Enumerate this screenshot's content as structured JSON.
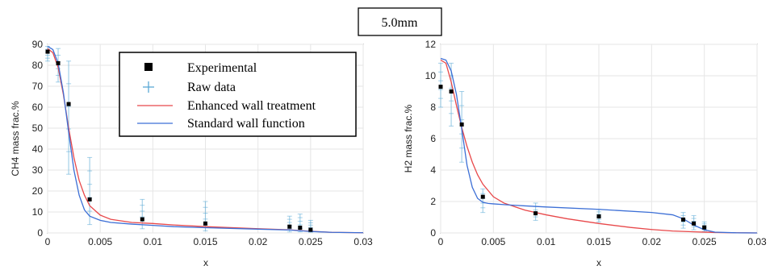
{
  "header": {
    "label": "5.0mm"
  },
  "legend": {
    "items": [
      {
        "label": "Experimental",
        "marker": "square",
        "color": "#000000"
      },
      {
        "label": "Raw data",
        "marker": "plus",
        "color": "#5aa9d6"
      },
      {
        "label": "Enhanced wall treatment",
        "marker": "line",
        "color": "#e8484a"
      },
      {
        "label": "Standard wall function",
        "marker": "line",
        "color": "#3c6fd6"
      }
    ]
  },
  "chart_data": [
    {
      "type": "scatter",
      "xlabel": "x",
      "ylabel": "CH4 mass frac.%",
      "xlim": [
        0,
        0.03
      ],
      "ylim": [
        0,
        90
      ],
      "xticks": [
        0,
        0.005,
        0.01,
        0.015,
        0.02,
        0.025,
        0.03
      ],
      "xtick_labels": [
        "0",
        "0.005",
        "0.01",
        "0.015",
        "0.02",
        "0.025",
        "0.03"
      ],
      "yticks": [
        0,
        10,
        20,
        30,
        40,
        50,
        60,
        70,
        80,
        90
      ],
      "ytick_labels": [
        "0",
        "10",
        "20",
        "30",
        "40",
        "50",
        "60",
        "70",
        "80",
        "90"
      ],
      "grid": true,
      "series": [
        {
          "name": "Experimental",
          "kind": "markers",
          "x": [
            0,
            0.001,
            0.002,
            0.004,
            0.009,
            0.015,
            0.023,
            0.024,
            0.025
          ],
          "y": [
            86.5,
            81,
            61.5,
            16,
            6.5,
            4.5,
            3,
            2.5,
            1.5
          ]
        },
        {
          "name": "Raw data",
          "kind": "ranges",
          "x": [
            0,
            0.001,
            0.002,
            0.004,
            0.009,
            0.015,
            0.023,
            0.024,
            0.025
          ],
          "low": [
            82,
            72,
            28,
            4,
            2,
            1,
            0.5,
            0.5,
            0.3
          ],
          "high": [
            89,
            88,
            82,
            36,
            16,
            15,
            8,
            9,
            6
          ]
        },
        {
          "name": "Enhanced wall treatment",
          "kind": "line",
          "x": [
            0,
            0.0005,
            0.001,
            0.0015,
            0.002,
            0.0025,
            0.003,
            0.0035,
            0.004,
            0.005,
            0.006,
            0.008,
            0.01,
            0.012,
            0.015,
            0.02,
            0.023,
            0.025,
            0.027,
            0.03
          ],
          "y": [
            88,
            86,
            79,
            66,
            50,
            36,
            25,
            18,
            13,
            8.5,
            6.5,
            5,
            4.5,
            3.8,
            3,
            2,
            1.5,
            0.8,
            0.3,
            0.1
          ]
        },
        {
          "name": "Standard wall function",
          "kind": "line",
          "x": [
            0,
            0.0005,
            0.001,
            0.0015,
            0.002,
            0.0025,
            0.003,
            0.0035,
            0.004,
            0.005,
            0.006,
            0.008,
            0.01,
            0.012,
            0.015,
            0.02,
            0.023,
            0.025,
            0.027,
            0.03
          ],
          "y": [
            89,
            87.5,
            81,
            67,
            48,
            30,
            18,
            11,
            8,
            6,
            5,
            4.2,
            3.6,
            3,
            2.5,
            1.8,
            1.4,
            0.7,
            0.3,
            0.1
          ]
        }
      ]
    },
    {
      "type": "scatter",
      "xlabel": "x",
      "ylabel": "H2 mass frac.%",
      "xlim": [
        0,
        0.03
      ],
      "ylim": [
        0,
        12
      ],
      "xticks": [
        0,
        0.005,
        0.01,
        0.015,
        0.02,
        0.025,
        0.03
      ],
      "xtick_labels": [
        "0",
        "0.005",
        "0.01",
        "0.015",
        "0.02",
        "0.025",
        "0.03"
      ],
      "yticks": [
        0,
        2,
        4,
        6,
        8,
        10,
        12
      ],
      "ytick_labels": [
        "0",
        "2",
        "4",
        "6",
        "8",
        "10",
        "12"
      ],
      "grid": true,
      "series": [
        {
          "name": "Experimental",
          "kind": "markers",
          "x": [
            0,
            0.001,
            0.002,
            0.004,
            0.009,
            0.015,
            0.023,
            0.024,
            0.025
          ],
          "y": [
            9.3,
            9.0,
            6.9,
            2.3,
            1.25,
            1.05,
            0.85,
            0.6,
            0.35
          ]
        },
        {
          "name": "Raw data",
          "kind": "ranges",
          "x": [
            0,
            0.001,
            0.002,
            0.004,
            0.009,
            0.015,
            0.023,
            0.024,
            0.025
          ],
          "low": [
            8.0,
            6.8,
            4.5,
            1.3,
            0.8,
            0.7,
            0.3,
            0.2,
            0.1
          ],
          "high": [
            10.8,
            10.8,
            9.0,
            2.8,
            1.9,
            1.5,
            1.3,
            1.1,
            0.7
          ]
        },
        {
          "name": "Enhanced wall treatment",
          "kind": "line",
          "x": [
            0,
            0.0005,
            0.001,
            0.0015,
            0.002,
            0.0025,
            0.003,
            0.0035,
            0.004,
            0.005,
            0.006,
            0.008,
            0.01,
            0.012,
            0.015,
            0.018,
            0.02,
            0.022,
            0.024,
            0.026,
            0.028,
            0.03
          ],
          "y": [
            11.0,
            10.8,
            9.6,
            8.1,
            6.7,
            5.5,
            4.5,
            3.7,
            3.1,
            2.3,
            1.9,
            1.45,
            1.15,
            0.9,
            0.6,
            0.35,
            0.22,
            0.12,
            0.07,
            0.03,
            0.01,
            0.0
          ]
        },
        {
          "name": "Standard wall function",
          "kind": "line",
          "x": [
            0,
            0.0005,
            0.001,
            0.0015,
            0.002,
            0.0025,
            0.003,
            0.0035,
            0.004,
            0.0045,
            0.005,
            0.006,
            0.008,
            0.01,
            0.015,
            0.02,
            0.022,
            0.023,
            0.024,
            0.025,
            0.026,
            0.028,
            0.03
          ],
          "y": [
            11.1,
            11.0,
            10.3,
            8.8,
            6.6,
            4.3,
            2.9,
            2.2,
            1.95,
            1.88,
            1.85,
            1.8,
            1.72,
            1.65,
            1.5,
            1.3,
            1.15,
            0.9,
            0.5,
            0.2,
            0.05,
            0.01,
            0.0
          ]
        }
      ]
    }
  ]
}
